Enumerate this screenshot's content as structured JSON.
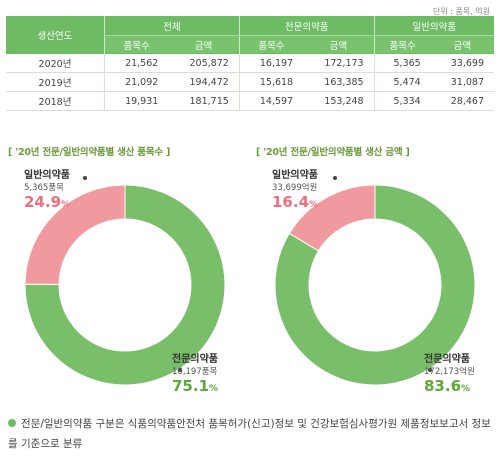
{
  "unit_note": "단위 : 품목, 억원",
  "table": {
    "year_header": "생산연도",
    "groups": [
      "전체",
      "전문의약품",
      "일반의약품"
    ],
    "subheaders": [
      "품목수",
      "금액"
    ],
    "rows": [
      {
        "year": "2020년",
        "values": [
          "21,562",
          "205,872",
          "16,197",
          "172,173",
          "5,365",
          "33,699"
        ]
      },
      {
        "year": "2019년",
        "values": [
          "21,092",
          "194,472",
          "15,618",
          "163,385",
          "5,474",
          "31,087"
        ]
      },
      {
        "year": "2018년",
        "values": [
          "19,931",
          "181,715",
          "14,597",
          "153,248",
          "5,334",
          "28,467"
        ]
      }
    ]
  },
  "colors": {
    "general": "#f09aa0",
    "professional": "#79bf6a",
    "header": "#6dbb63"
  },
  "chart_data": [
    {
      "type": "pie",
      "title": "[ '20년 전문/일반의약품별 생산 품목수 ]",
      "slices": [
        {
          "name": "일반의약품",
          "value": 5365,
          "value_label": "5,365품목",
          "percent": 24.9,
          "percent_unit": "%"
        },
        {
          "name": "전문의약품",
          "value": 16197,
          "value_label": "16,197품목",
          "percent": 75.1,
          "percent_unit": "%"
        }
      ]
    },
    {
      "type": "pie",
      "title": "[ '20년 전문/일반의약품별 생산 금액 ]",
      "slices": [
        {
          "name": "일반의약품",
          "value": 33699,
          "value_label": "33,699억원",
          "percent": 16.4,
          "percent_unit": "%"
        },
        {
          "name": "전문의약품",
          "value": 172173,
          "value_label": "172,173억원",
          "percent": 83.6,
          "percent_unit": "%"
        }
      ]
    }
  ],
  "note": "전문/일반의약품 구분은 식품의약품안전처 품목허가(신고)정보 및 건강보험심사평가원 제품정보보고서 정보를 기준으로 분류"
}
